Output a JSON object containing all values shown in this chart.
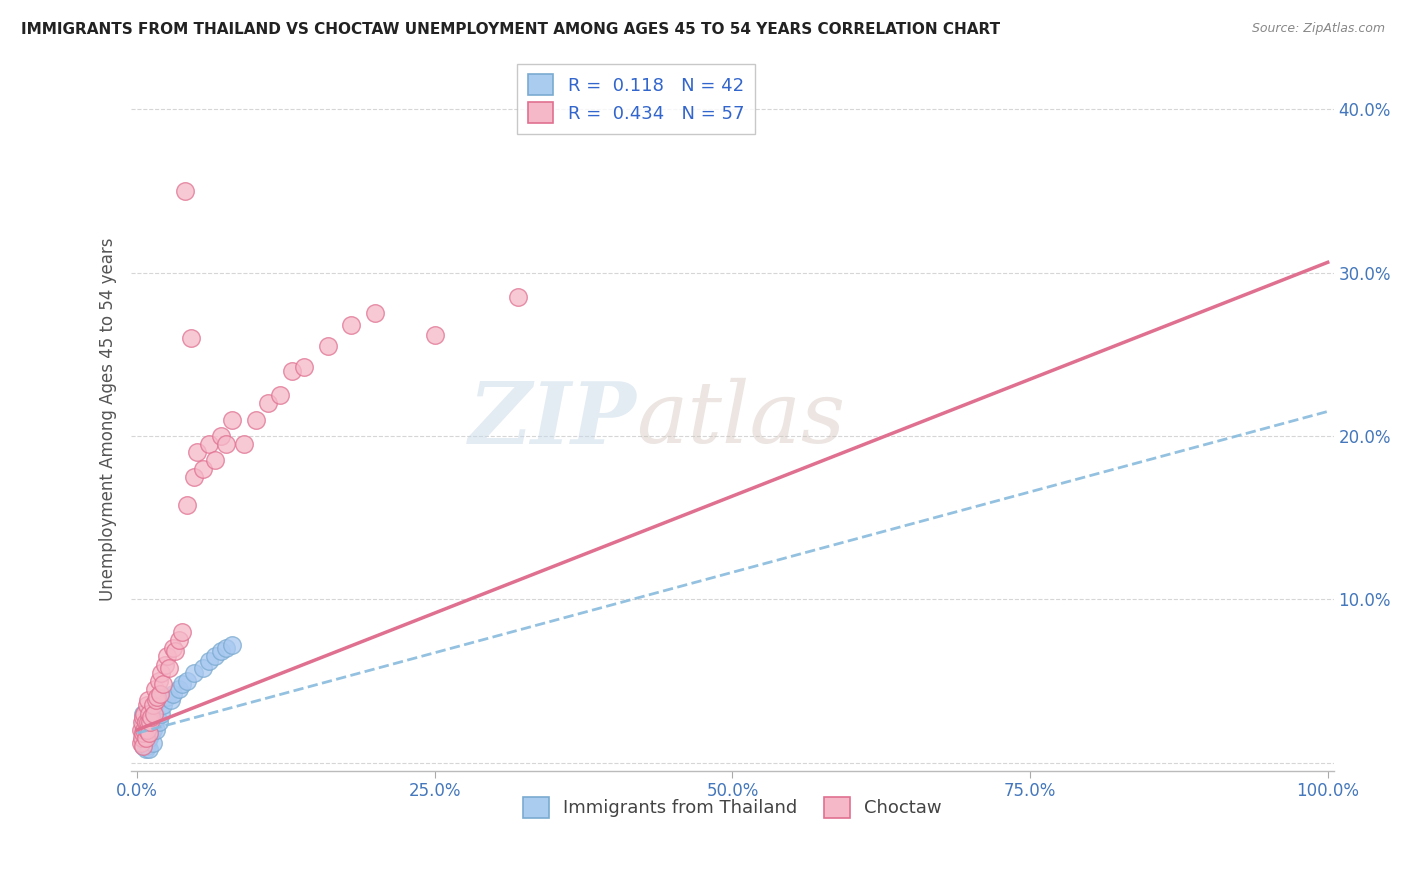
{
  "title": "IMMIGRANTS FROM THAILAND VS CHOCTAW UNEMPLOYMENT AMONG AGES 45 TO 54 YEARS CORRELATION CHART",
  "source": "Source: ZipAtlas.com",
  "ylabel": "Unemployment Among Ages 45 to 54 years",
  "watermark_zip": "ZIP",
  "watermark_atlas": "atlas",
  "series1_name": "Immigrants from Thailand",
  "series1_color": "#a8c8f0",
  "series1_edge_color": "#7aaad0",
  "series1_line_color": "#88bbdd",
  "series1_R": 0.118,
  "series1_N": 42,
  "series2_name": "Choctaw",
  "series2_color": "#f5b8c8",
  "series2_edge_color": "#e07090",
  "series2_line_color": "#e07090",
  "series2_R": 0.434,
  "series2_N": 57,
  "xlim": [
    -0.005,
    1.005
  ],
  "ylim": [
    -0.005,
    0.425
  ],
  "xticks": [
    0.0,
    0.25,
    0.5,
    0.75,
    1.0
  ],
  "xtick_labels": [
    "0.0%",
    "25.0%",
    "50.0%",
    "75.0%",
    "100.0%"
  ],
  "yticks": [
    0.0,
    0.1,
    0.2,
    0.3,
    0.4
  ],
  "ytick_labels": [
    "",
    "10.0%",
    "20.0%",
    "30.0%",
    "40.0%"
  ],
  "background_color": "#ffffff",
  "grid_color": "#cccccc",
  "title_color": "#222222",
  "axis_label_color": "#555555",
  "tick_label_color": "#4477bb",
  "legend_box1_face": "#aaccee",
  "legend_box1_edge": "#7aaad0",
  "legend_box2_face": "#f5b8c8",
  "legend_box2_edge": "#e07090",
  "series1_x": [
    0.005,
    0.005,
    0.005,
    0.005,
    0.005,
    0.007,
    0.007,
    0.007,
    0.007,
    0.008,
    0.008,
    0.008,
    0.009,
    0.009,
    0.009,
    0.01,
    0.01,
    0.01,
    0.012,
    0.012,
    0.013,
    0.013,
    0.015,
    0.015,
    0.016,
    0.017,
    0.018,
    0.02,
    0.022,
    0.025,
    0.028,
    0.03,
    0.035,
    0.038,
    0.042,
    0.048,
    0.055,
    0.06,
    0.065,
    0.07,
    0.075,
    0.08
  ],
  "series1_y": [
    0.01,
    0.015,
    0.02,
    0.025,
    0.03,
    0.008,
    0.012,
    0.018,
    0.022,
    0.01,
    0.018,
    0.025,
    0.015,
    0.02,
    0.03,
    0.008,
    0.015,
    0.022,
    0.018,
    0.025,
    0.012,
    0.02,
    0.025,
    0.035,
    0.02,
    0.028,
    0.025,
    0.03,
    0.035,
    0.04,
    0.038,
    0.042,
    0.045,
    0.048,
    0.05,
    0.055,
    0.058,
    0.062,
    0.065,
    0.068,
    0.07,
    0.072
  ],
  "series2_x": [
    0.003,
    0.003,
    0.004,
    0.004,
    0.005,
    0.005,
    0.005,
    0.006,
    0.006,
    0.007,
    0.007,
    0.008,
    0.008,
    0.009,
    0.009,
    0.01,
    0.01,
    0.011,
    0.012,
    0.013,
    0.014,
    0.015,
    0.016,
    0.017,
    0.018,
    0.019,
    0.02,
    0.022,
    0.023,
    0.025,
    0.027,
    0.03,
    0.032,
    0.035,
    0.038,
    0.04,
    0.042,
    0.045,
    0.048,
    0.05,
    0.055,
    0.06,
    0.065,
    0.07,
    0.075,
    0.08,
    0.09,
    0.1,
    0.11,
    0.12,
    0.13,
    0.14,
    0.16,
    0.18,
    0.2,
    0.25,
    0.32
  ],
  "series2_y": [
    0.012,
    0.02,
    0.015,
    0.025,
    0.01,
    0.018,
    0.028,
    0.02,
    0.03,
    0.015,
    0.025,
    0.02,
    0.035,
    0.025,
    0.038,
    0.018,
    0.03,
    0.025,
    0.028,
    0.035,
    0.03,
    0.045,
    0.038,
    0.04,
    0.05,
    0.042,
    0.055,
    0.048,
    0.06,
    0.065,
    0.058,
    0.07,
    0.068,
    0.075,
    0.08,
    0.35,
    0.158,
    0.26,
    0.175,
    0.19,
    0.18,
    0.195,
    0.185,
    0.2,
    0.195,
    0.21,
    0.195,
    0.21,
    0.22,
    0.225,
    0.24,
    0.242,
    0.255,
    0.268,
    0.275,
    0.262,
    0.285
  ],
  "trendline1_x0": 0.0,
  "trendline1_y0": 0.018,
  "trendline1_x1": 1.0,
  "trendline1_y1": 0.215,
  "trendline2_x0": 0.0,
  "trendline2_y0": 0.02,
  "trendline2_x1": 0.95,
  "trendline2_y1": 0.292
}
